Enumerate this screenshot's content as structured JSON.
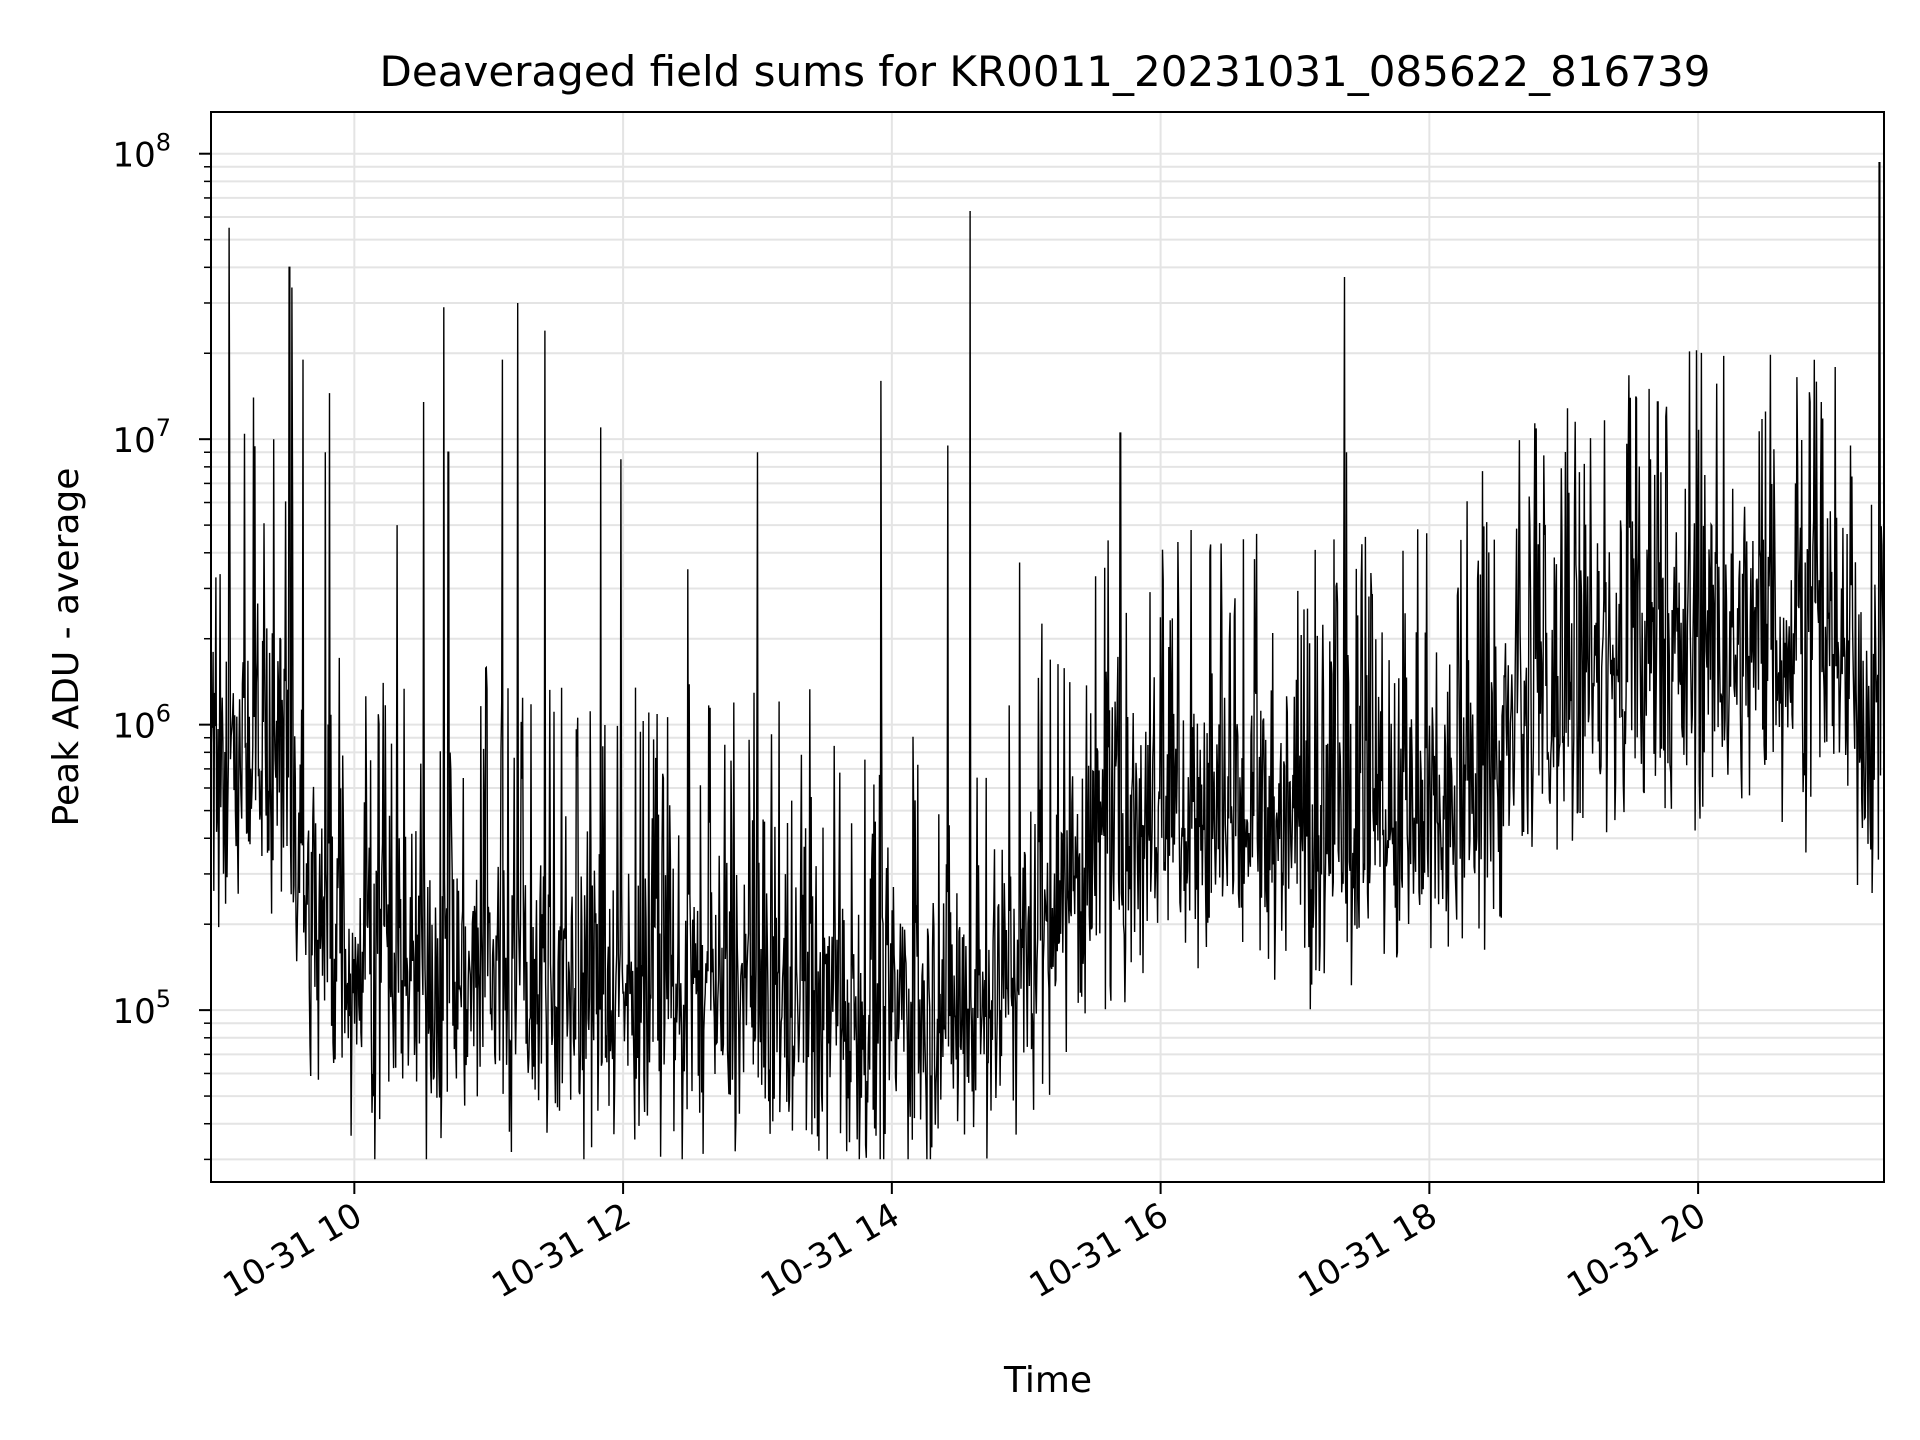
{
  "chart_data": {
    "type": "line",
    "title": "Deaveraged field sums for KR0011_20231031_085622_816739",
    "xlabel": "Time",
    "ylabel": "Peak ADU - average",
    "yscale": "log",
    "ylim": [
      25000,
      140000000
    ],
    "xlim": [
      "2023-10-31 08:56",
      "2023-10-31 21:23"
    ],
    "grid": true,
    "line_color": "#000000",
    "x_ticks": [
      {
        "time": "2023-10-31 10:00",
        "label": "10-31 10"
      },
      {
        "time": "2023-10-31 12:00",
        "label": "10-31 12"
      },
      {
        "time": "2023-10-31 14:00",
        "label": "10-31 14"
      },
      {
        "time": "2023-10-31 16:00",
        "label": "10-31 16"
      },
      {
        "time": "2023-10-31 18:00",
        "label": "10-31 18"
      },
      {
        "time": "2023-10-31 20:00",
        "label": "10-31 20"
      }
    ],
    "y_ticks": [
      {
        "value": 100000,
        "base": "10",
        "exp": "5"
      },
      {
        "value": 1000000,
        "base": "10",
        "exp": "6"
      },
      {
        "value": 10000000,
        "base": "10",
        "exp": "7"
      },
      {
        "value": 100000000,
        "base": "10",
        "exp": "8"
      }
    ],
    "baseline": [
      {
        "t": "2023-10-31 08:56",
        "v": 400000
      },
      {
        "t": "2023-10-31 09:10",
        "v": 900000
      },
      {
        "t": "2023-10-31 09:30",
        "v": 700000
      },
      {
        "t": "2023-10-31 09:40",
        "v": 200000
      },
      {
        "t": "2023-10-31 10:00",
        "v": 150000
      },
      {
        "t": "2023-10-31 11:00",
        "v": 130000
      },
      {
        "t": "2023-10-31 12:00",
        "v": 120000
      },
      {
        "t": "2023-10-31 13:00",
        "v": 110000
      },
      {
        "t": "2023-10-31 14:00",
        "v": 100000
      },
      {
        "t": "2023-10-31 14:45",
        "v": 110000
      },
      {
        "t": "2023-10-31 15:30",
        "v": 350000
      },
      {
        "t": "2023-10-31 16:00",
        "v": 500000
      },
      {
        "t": "2023-10-31 17:00",
        "v": 450000
      },
      {
        "t": "2023-10-31 18:00",
        "v": 400000
      },
      {
        "t": "2023-10-31 18:30",
        "v": 700000
      },
      {
        "t": "2023-10-31 19:00",
        "v": 1400000
      },
      {
        "t": "2023-10-31 19:30",
        "v": 1600000
      },
      {
        "t": "2023-10-31 20:00",
        "v": 1800000
      },
      {
        "t": "2023-10-31 21:00",
        "v": 2000000
      },
      {
        "t": "2023-10-31 21:23",
        "v": 800000
      }
    ],
    "spikes": [
      {
        "t": "2023-10-31 09:04",
        "v": 55000000
      },
      {
        "t": "2023-10-31 09:15",
        "v": 14000000
      },
      {
        "t": "2023-10-31 09:24",
        "v": 10000000
      },
      {
        "t": "2023-10-31 09:31",
        "v": 40000000
      },
      {
        "t": "2023-10-31 09:32",
        "v": 34000000
      },
      {
        "t": "2023-10-31 09:37",
        "v": 19000000
      },
      {
        "t": "2023-10-31 09:47",
        "v": 9000000
      },
      {
        "t": "2023-10-31 09:49",
        "v": 14500000
      },
      {
        "t": "2023-10-31 10:19",
        "v": 5000000
      },
      {
        "t": "2023-10-31 10:31",
        "v": 13500000
      },
      {
        "t": "2023-10-31 10:40",
        "v": 29000000
      },
      {
        "t": "2023-10-31 10:42",
        "v": 9000000
      },
      {
        "t": "2023-10-31 11:06",
        "v": 19000000
      },
      {
        "t": "2023-10-31 11:13",
        "v": 30000000
      },
      {
        "t": "2023-10-31 11:25",
        "v": 24000000
      },
      {
        "t": "2023-10-31 11:50",
        "v": 11000000
      },
      {
        "t": "2023-10-31 11:59",
        "v": 8500000
      },
      {
        "t": "2023-10-31 12:29",
        "v": 3500000
      },
      {
        "t": "2023-10-31 13:00",
        "v": 9000000
      },
      {
        "t": "2023-10-31 13:55",
        "v": 16000000
      },
      {
        "t": "2023-10-31 14:25",
        "v": 9500000
      },
      {
        "t": "2023-10-31 14:35",
        "v": 63000000
      },
      {
        "t": "2023-10-31 14:57",
        "v": 3700000
      },
      {
        "t": "2023-10-31 15:42",
        "v": 10500000
      },
      {
        "t": "2023-10-31 16:42",
        "v": 3800000
      },
      {
        "t": "2023-10-31 17:22",
        "v": 37000000
      },
      {
        "t": "2023-10-31 17:23",
        "v": 9000000
      },
      {
        "t": "2023-10-31 19:42",
        "v": 13500000
      },
      {
        "t": "2023-10-31 19:46",
        "v": 13000000
      },
      {
        "t": "2023-10-31 20:30",
        "v": 12500000
      },
      {
        "t": "2023-10-31 20:55",
        "v": 13500000
      },
      {
        "t": "2023-10-31 21:08",
        "v": 9500000
      },
      {
        "t": "2023-10-31 21:21",
        "v": 93000000
      }
    ]
  }
}
